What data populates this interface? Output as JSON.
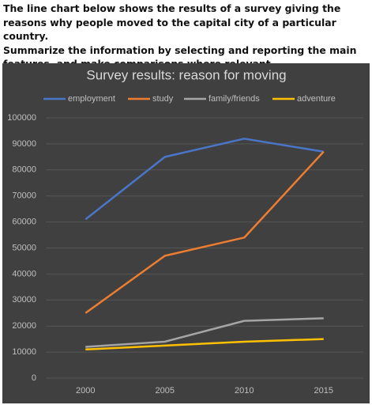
{
  "prompt": [
    "The line chart below shows the results of a survey giving the reasons why people moved to the capital city of a particular country.",
    "Summarize the information by selecting and reporting the main features, and make comparisons where relevant."
  ],
  "chart_data": {
    "type": "line",
    "title": "Survey results: reason for moving",
    "categories": [
      "2000",
      "2005",
      "2010",
      "2015"
    ],
    "series": [
      {
        "name": "employment",
        "color": "#4a76c9",
        "values": [
          61000,
          85000,
          92000,
          87000
        ]
      },
      {
        "name": "study",
        "color": "#ed7d31",
        "values": [
          25000,
          47000,
          54000,
          87000
        ]
      },
      {
        "name": "family/friends",
        "color": "#a5a5a5",
        "values": [
          12000,
          14000,
          22000,
          23000
        ]
      },
      {
        "name": "adventure",
        "color": "#ffc000",
        "values": [
          11000,
          12500,
          14000,
          15000
        ]
      }
    ],
    "ylim": [
      0,
      100000
    ],
    "yticks": [
      0,
      10000,
      20000,
      30000,
      40000,
      50000,
      60000,
      70000,
      80000,
      90000,
      100000
    ],
    "grid": true,
    "legend": "top"
  }
}
